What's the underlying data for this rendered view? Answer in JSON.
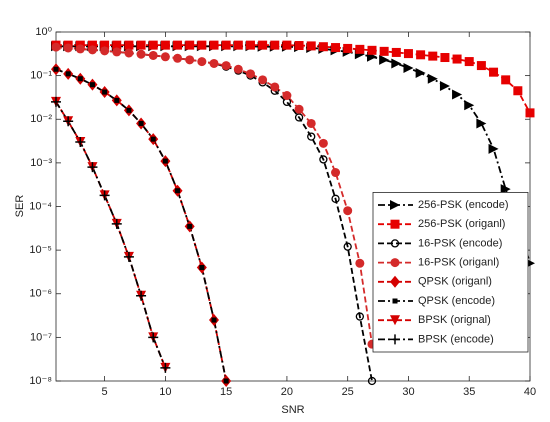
{
  "chart_data": {
    "type": "line",
    "log_y": true,
    "legend": "lower right",
    "xlabel": "SNR",
    "ylabel": "SER",
    "xlim": [
      1,
      40
    ],
    "xticks": [
      5,
      10,
      15,
      20,
      25,
      30,
      35,
      40
    ],
    "ylim": [
      1e-08,
      1
    ],
    "yticks": [
      {
        "value": 1,
        "label": "10⁰"
      },
      {
        "value": 0.1,
        "label": "10⁻¹"
      },
      {
        "value": 0.01,
        "label": "10⁻²"
      },
      {
        "value": 0.001,
        "label": "10⁻³"
      },
      {
        "value": 0.0001,
        "label": "10⁻⁴"
      },
      {
        "value": 1e-05,
        "label": "10⁻⁵"
      },
      {
        "value": 1e-06,
        "label": "10⁻⁶"
      },
      {
        "value": 1e-07,
        "label": "10⁻⁷"
      },
      {
        "value": 1e-08,
        "label": "10⁻⁸"
      }
    ],
    "x": [
      1,
      2,
      3,
      4,
      5,
      6,
      7,
      8,
      9,
      10,
      11,
      12,
      13,
      14,
      15,
      16,
      17,
      18,
      19,
      20,
      21,
      22,
      23,
      24,
      25,
      26,
      27,
      28,
      29,
      30,
      31,
      32,
      33,
      34,
      35,
      36,
      37,
      38,
      39,
      40
    ],
    "series": [
      {
        "name": "256-PSK (encode)",
        "color": "#000000",
        "marker": "triangle-right",
        "dash": "dashdot",
        "values": [
          0.47,
          0.47,
          0.47,
          0.47,
          0.47,
          0.47,
          0.47,
          0.47,
          0.47,
          0.47,
          0.47,
          0.47,
          0.47,
          0.47,
          0.47,
          0.47,
          0.47,
          0.46,
          0.46,
          0.46,
          0.45,
          0.43,
          0.41,
          0.38,
          0.35,
          0.31,
          0.27,
          0.23,
          0.19,
          0.15,
          0.115,
          0.085,
          0.058,
          0.037,
          0.021,
          0.008,
          0.0021,
          0.00025,
          4e-05,
          5e-06
        ]
      },
      {
        "name": "256-PSK (origanl)",
        "color": "#e60000",
        "marker": "square",
        "dash": "dashed",
        "values": [
          0.5,
          0.5,
          0.5,
          0.5,
          0.5,
          0.5,
          0.5,
          0.5,
          0.5,
          0.5,
          0.5,
          0.5,
          0.5,
          0.5,
          0.5,
          0.5,
          0.5,
          0.5,
          0.5,
          0.5,
          0.49,
          0.48,
          0.46,
          0.44,
          0.42,
          0.4,
          0.38,
          0.36,
          0.34,
          0.32,
          0.3,
          0.28,
          0.26,
          0.24,
          0.21,
          0.17,
          0.12,
          0.08,
          0.045,
          0.014
        ]
      },
      {
        "name": "16-PSK (encode)",
        "color": "#000000",
        "marker": "circle-open",
        "dash": "dashed",
        "values": [
          0.45,
          0.43,
          0.41,
          0.39,
          0.37,
          0.35,
          0.33,
          0.31,
          0.29,
          0.27,
          0.25,
          0.23,
          0.21,
          0.19,
          0.16,
          0.13,
          0.1,
          0.07,
          0.045,
          0.025,
          0.011,
          0.004,
          0.0012,
          0.00015,
          1.2e-05,
          3e-07,
          1e-08,
          null,
          null,
          null,
          null,
          null,
          null,
          null,
          null,
          null,
          null,
          null,
          null,
          null
        ]
      },
      {
        "name": "16-PSK (origanl)",
        "color": "#d42a2a",
        "marker": "circle",
        "dash": "dashed",
        "values": [
          0.45,
          0.43,
          0.41,
          0.39,
          0.37,
          0.35,
          0.33,
          0.31,
          0.29,
          0.27,
          0.25,
          0.23,
          0.21,
          0.19,
          0.17,
          0.14,
          0.11,
          0.08,
          0.055,
          0.035,
          0.017,
          0.008,
          0.0028,
          0.0006,
          8e-05,
          5e-06,
          7e-08,
          null,
          null,
          null,
          null,
          null,
          null,
          null,
          null,
          null,
          null,
          null,
          null,
          null
        ]
      },
      {
        "name": "QPSK (origanl)",
        "color": "#d40000",
        "marker": "diamond",
        "dash": "dashed",
        "values": [
          0.14,
          0.11,
          0.085,
          0.062,
          0.042,
          0.027,
          0.016,
          0.008,
          0.0035,
          0.0011,
          0.00023,
          3.5e-05,
          4e-06,
          2.5e-07,
          1e-08,
          null,
          null,
          null,
          null,
          null,
          null,
          null,
          null,
          null,
          null,
          null,
          null,
          null,
          null,
          null,
          null,
          null,
          null,
          null,
          null,
          null,
          null,
          null,
          null,
          null
        ]
      },
      {
        "name": "QPSK (encode)",
        "color": "#000000",
        "marker": "square-small",
        "dash": "dashdot",
        "values": [
          0.14,
          0.11,
          0.085,
          0.062,
          0.042,
          0.027,
          0.016,
          0.008,
          0.0035,
          0.0011,
          0.00023,
          3.5e-05,
          4e-06,
          2.5e-07,
          1e-08,
          null,
          null,
          null,
          null,
          null,
          null,
          null,
          null,
          null,
          null,
          null,
          null,
          null,
          null,
          null,
          null,
          null,
          null,
          null,
          null,
          null,
          null,
          null,
          null,
          null
        ]
      },
      {
        "name": "BPSK (orignal)",
        "color": "#d40000",
        "marker": "triangle-down",
        "dash": "dashed",
        "values": [
          0.025,
          0.009,
          0.003,
          0.0008,
          0.00018,
          4e-05,
          7e-06,
          9e-07,
          1e-07,
          2e-08,
          null,
          null,
          null,
          null,
          null,
          null,
          null,
          null,
          null,
          null,
          null,
          null,
          null,
          null,
          null,
          null,
          null,
          null,
          null,
          null,
          null,
          null,
          null,
          null,
          null,
          null,
          null,
          null,
          null,
          null
        ]
      },
      {
        "name": "BPSK (encode)",
        "color": "#000000",
        "marker": "plus",
        "dash": "dashdot",
        "values": [
          0.025,
          0.009,
          0.003,
          0.0008,
          0.00018,
          4e-05,
          7e-06,
          9e-07,
          1e-07,
          2e-08,
          null,
          null,
          null,
          null,
          null,
          null,
          null,
          null,
          null,
          null,
          null,
          null,
          null,
          null,
          null,
          null,
          null,
          null,
          null,
          null,
          null,
          null,
          null,
          null,
          null,
          null,
          null,
          null,
          null,
          null
        ]
      }
    ]
  }
}
